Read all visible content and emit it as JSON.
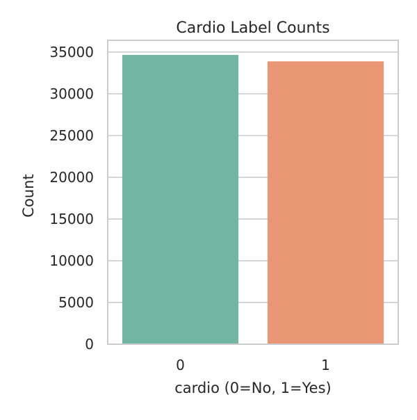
{
  "chart_data": {
    "type": "bar",
    "title": "Cardio Label Counts",
    "xlabel": "cardio (0=No, 1=Yes)",
    "ylabel": "Count",
    "categories": [
      "0",
      "1"
    ],
    "values": [
      34650,
      33880
    ],
    "colors": [
      "#72b6a1",
      "#e99675"
    ],
    "ylim": [
      0,
      35000
    ],
    "yticks": [
      0,
      5000,
      10000,
      15000,
      20000,
      25000,
      30000,
      35000
    ],
    "grid": "horizontal",
    "legend": "none"
  }
}
